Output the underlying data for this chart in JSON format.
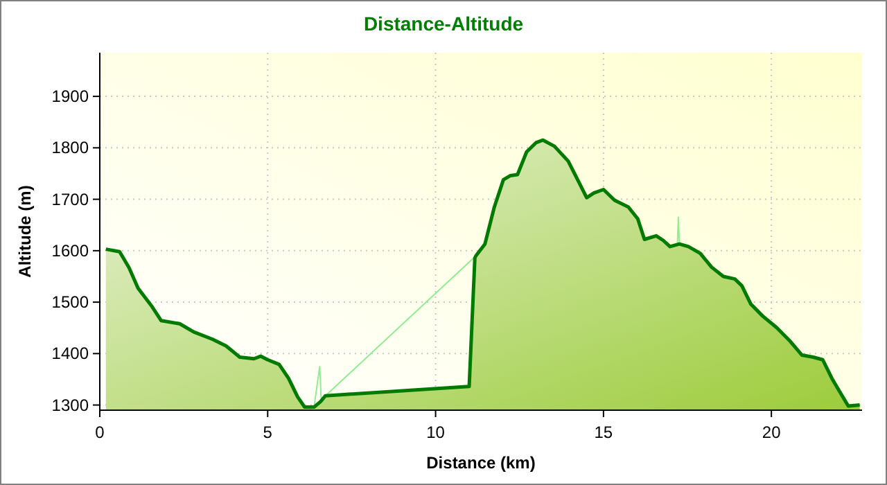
{
  "chart_data": {
    "type": "area",
    "title": "Distance-Altitude",
    "xlabel": "Distance (km)",
    "ylabel": "Altitude (m)",
    "xlim": [
      0,
      22.7
    ],
    "xticks": [
      0,
      5,
      10,
      15,
      20
    ],
    "ylim": [
      1290,
      1985
    ],
    "yticks": [
      1300,
      1400,
      1500,
      1600,
      1700,
      1800,
      1900
    ],
    "grid": true,
    "series": [
      {
        "color": "#007a00",
        "x": [
          0.18,
          0.59,
          0.87,
          1.14,
          1.56,
          1.83,
          2.38,
          2.8,
          3.35,
          3.76,
          4.17,
          4.59,
          4.79,
          5,
          5.34,
          5.62,
          5.89,
          6.1,
          6.38,
          6.58,
          6.72,
          11,
          11.17,
          11.2,
          11.47,
          11.75,
          12.02,
          12.23,
          12.44,
          12.71,
          12.99,
          13.2,
          13.54,
          13.95,
          14.23,
          14.5,
          14.71,
          15,
          15.33,
          15.74,
          16.02,
          16.22,
          16.57,
          16.78,
          16.98,
          17.26,
          17.53,
          17.88,
          18.22,
          18.57,
          18.91,
          19.12,
          19.39,
          19.74,
          20.15,
          20.56,
          20.91,
          21.25,
          21.53,
          21.8,
          22.08,
          22.29,
          22.63
        ],
        "values": [
          1603,
          1598,
          1567,
          1527,
          1491,
          1464,
          1458,
          1442,
          1428,
          1415,
          1393,
          1390,
          1395,
          1388,
          1379,
          1352,
          1316,
          1296,
          1296,
          1307,
          1318,
          1336,
          1586,
          1590,
          1613,
          1685,
          1738,
          1746,
          1748,
          1792,
          1810,
          1815,
          1803,
          1774,
          1738,
          1703,
          1712,
          1719,
          1698,
          1685,
          1662,
          1622,
          1629,
          1620,
          1608,
          1613,
          1608,
          1595,
          1568,
          1550,
          1545,
          1532,
          1496,
          1473,
          1451,
          1424,
          1397,
          1393,
          1388,
          1352,
          1321,
          1298,
          1300
        ]
      },
      {
        "type": "line",
        "color": "#90ee90",
        "x": [
          6.38,
          6.55,
          6.6,
          6.72,
          11.2,
          11.3,
          17.2,
          17.23,
          17.26
        ],
        "values": [
          1296,
          1375,
          1300,
          1318,
          1590,
          null,
          1613,
          1665,
          1613
        ]
      }
    ]
  }
}
